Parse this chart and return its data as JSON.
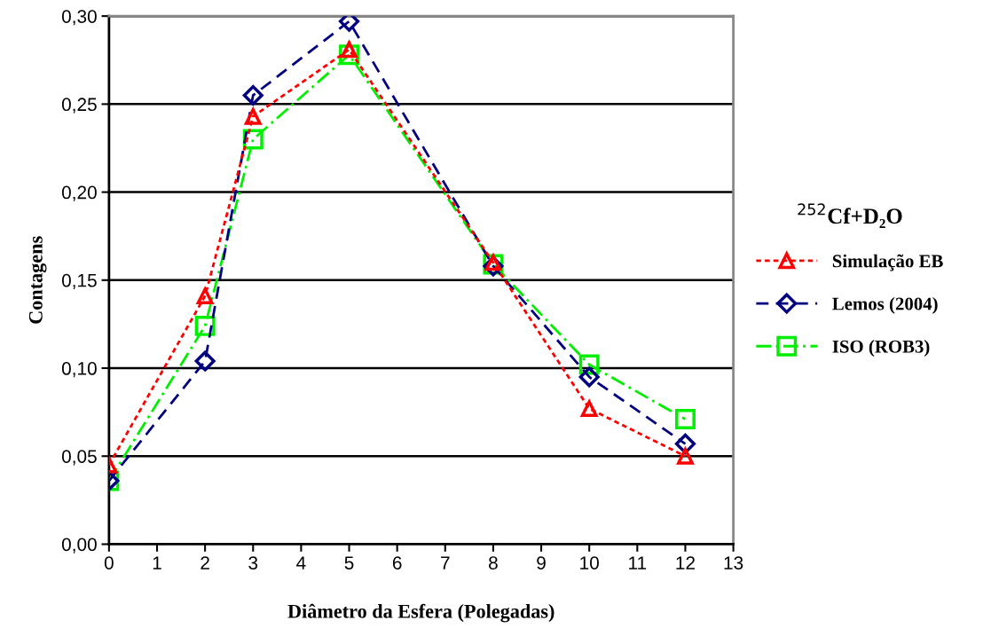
{
  "chart_data": {
    "type": "line",
    "xlabel": "Diâmetro da Esfera (Polegadas)",
    "ylabel": "Contagens",
    "legend_title": "$^{252}$Cf+D₂O",
    "x": [
      0,
      2,
      3,
      5,
      8,
      10,
      12
    ],
    "series": [
      {
        "name": "Simulação EB",
        "color": "#ff0000",
        "marker": "triangle",
        "line_style": "dotted",
        "values": [
          0.045,
          0.141,
          0.243,
          0.281,
          0.16,
          0.077,
          0.05
        ]
      },
      {
        "name": "Lemos (2004)",
        "color": "#000080",
        "marker": "diamond",
        "line_style": "dashed",
        "values": [
          0.036,
          0.104,
          0.255,
          0.297,
          0.158,
          0.095,
          0.057
        ]
      },
      {
        "name": "ISO (ROB3)",
        "color": "#00ee00",
        "marker": "square",
        "line_style": "dashdot",
        "values": [
          0.036,
          0.124,
          0.23,
          0.278,
          0.159,
          0.102,
          0.071
        ]
      }
    ],
    "xlim": [
      0,
      13
    ],
    "xticks": [
      0,
      1,
      2,
      3,
      4,
      5,
      6,
      7,
      8,
      9,
      10,
      11,
      12,
      13
    ],
    "ylim": [
      0,
      0.3
    ],
    "yticks": [
      {
        "value": 0,
        "label": "0,00"
      },
      {
        "value": 0.05,
        "label": "0,05"
      },
      {
        "value": 0.1,
        "label": "0,10"
      },
      {
        "value": 0.15,
        "label": "0,15"
      },
      {
        "value": 0.2,
        "label": "0,20"
      },
      {
        "value": 0.25,
        "label": "0,25"
      },
      {
        "value": 0.3,
        "label": "0,30"
      }
    ],
    "grid": "y",
    "legend": "right"
  }
}
